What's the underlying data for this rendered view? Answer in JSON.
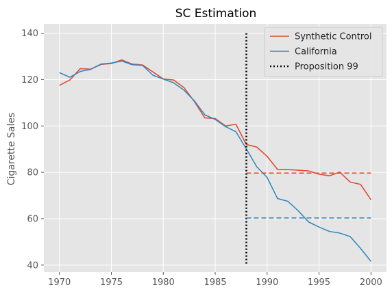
{
  "chart_data": {
    "type": "line",
    "title": "SC Estimation",
    "xlabel": "",
    "ylabel": "Cigarette Sales",
    "xlim": [
      1968.5,
      2001.5
    ],
    "ylim": [
      37,
      144
    ],
    "xticks": [
      1970,
      1975,
      1980,
      1985,
      1990,
      1995,
      2000
    ],
    "yticks": [
      40,
      60,
      80,
      100,
      120,
      140
    ],
    "grid": true,
    "legend_position": "top-right",
    "x": [
      1970,
      1971,
      1972,
      1973,
      1974,
      1975,
      1976,
      1977,
      1978,
      1979,
      1980,
      1981,
      1982,
      1983,
      1984,
      1985,
      1986,
      1987,
      1988,
      1989,
      1990,
      1991,
      1992,
      1993,
      1994,
      1995,
      1996,
      1997,
      1998,
      1999,
      2000
    ],
    "series": [
      {
        "name": "Synthetic Control",
        "color": "#E24A33",
        "values": [
          117.5,
          119.8,
          124.7,
          124.5,
          126.5,
          126.9,
          128.5,
          126.7,
          126.3,
          123.3,
          120.3,
          119.8,
          116.5,
          110.5,
          103.5,
          103.2,
          100.0,
          100.7,
          92.0,
          90.9,
          86.9,
          81.3,
          81.2,
          80.9,
          80.6,
          79.2,
          78.5,
          80.1,
          75.8,
          74.8,
          68.2
        ]
      },
      {
        "name": "California",
        "color": "#348ABD",
        "values": [
          123.0,
          121.0,
          123.5,
          124.4,
          126.7,
          127.1,
          128.0,
          126.4,
          126.1,
          121.9,
          120.2,
          118.6,
          115.4,
          110.8,
          104.8,
          102.8,
          99.7,
          97.5,
          90.1,
          82.4,
          77.8,
          68.7,
          67.5,
          63.4,
          58.6,
          56.4,
          54.5,
          53.8,
          52.3,
          47.2,
          41.6
        ]
      }
    ],
    "reference_lines": [
      {
        "name": "Proposition 99",
        "orientation": "vertical",
        "x": 1988,
        "y_range": [
          40,
          140
        ],
        "style": "dotted",
        "color": "#000000"
      },
      {
        "orientation": "horizontal",
        "y": 79.7,
        "x_range": [
          1988,
          2000
        ],
        "style": "dashed",
        "color": "#E24A33"
      },
      {
        "orientation": "horizontal",
        "y": 60.3,
        "x_range": [
          1988,
          2000
        ],
        "style": "dashed",
        "color": "#348ABD"
      }
    ],
    "legend": [
      {
        "label": "Synthetic Control",
        "color": "#E24A33",
        "style": "solid"
      },
      {
        "label": "California",
        "color": "#348ABD",
        "style": "solid"
      },
      {
        "label": "Proposition 99",
        "color": "#000000",
        "style": "dotted"
      }
    ],
    "plot_background": "#E5E5E5",
    "grid_color": "#FFFFFF"
  }
}
